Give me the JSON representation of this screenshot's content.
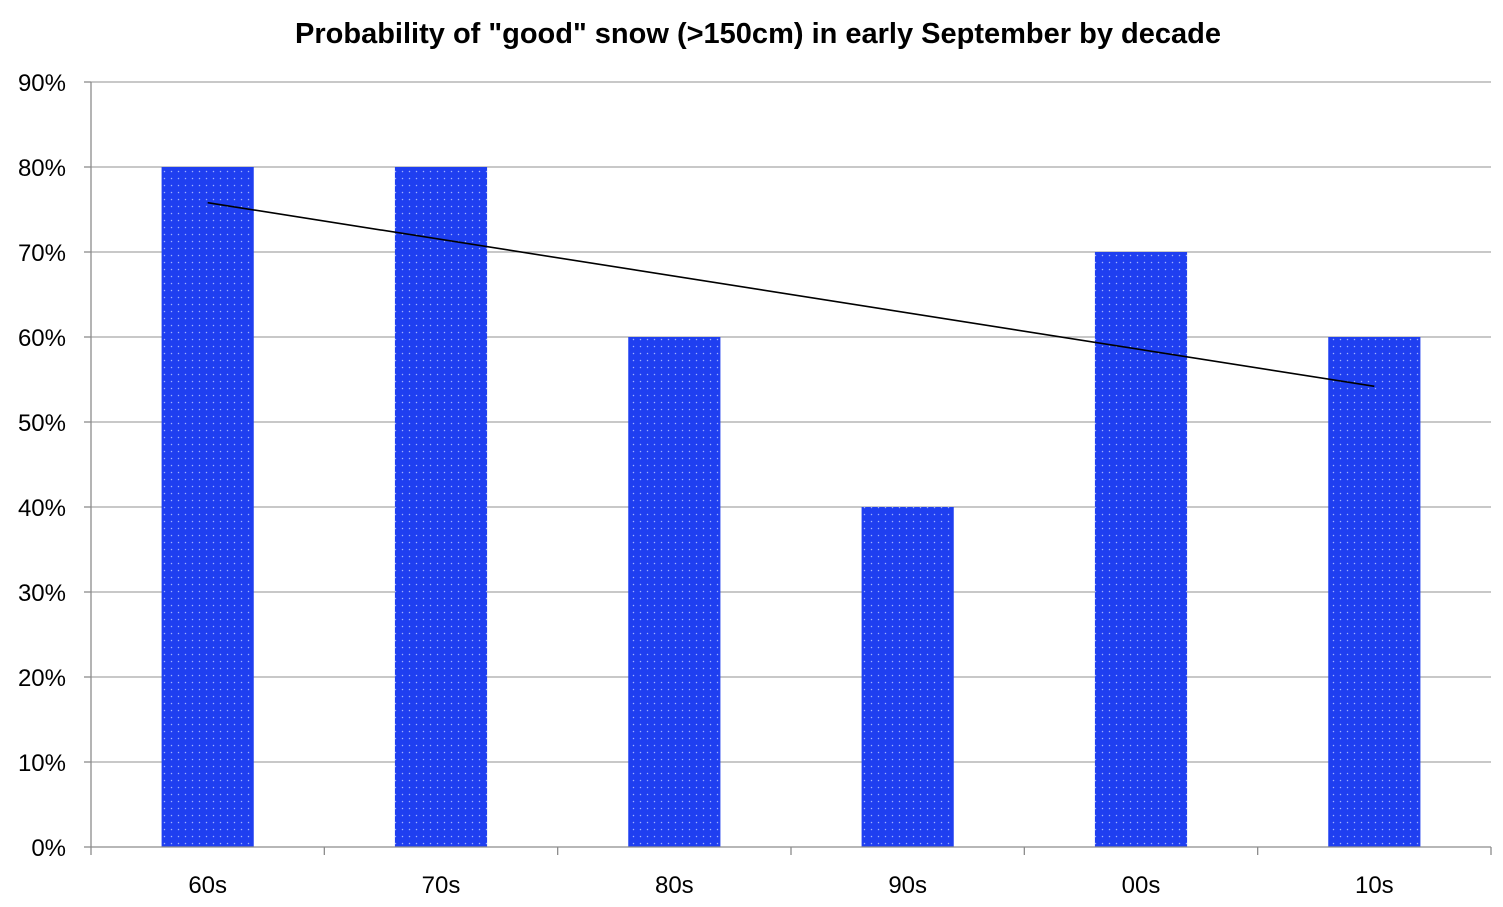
{
  "chart_data": {
    "type": "bar",
    "title": "Probability of \"good\" snow (>150cm) in early September by decade",
    "xlabel": "",
    "ylabel": "",
    "categories": [
      "60s",
      "70s",
      "80s",
      "90s",
      "00s",
      "10s"
    ],
    "values": [
      80,
      80,
      60,
      40,
      70,
      60
    ],
    "value_format": "percent",
    "ylim": [
      0,
      90
    ],
    "yticks": [
      0,
      10,
      20,
      30,
      40,
      50,
      60,
      70,
      80,
      90
    ],
    "ytick_labels": [
      "0%",
      "10%",
      "20%",
      "30%",
      "40%",
      "50%",
      "60%",
      "70%",
      "80%",
      "90%"
    ],
    "grid": true,
    "legend": "none",
    "bar_color": "#1f3ff0",
    "trendline": {
      "type": "linear",
      "start_value": 75.8,
      "end_value": 54.2,
      "color": "#000000"
    }
  }
}
